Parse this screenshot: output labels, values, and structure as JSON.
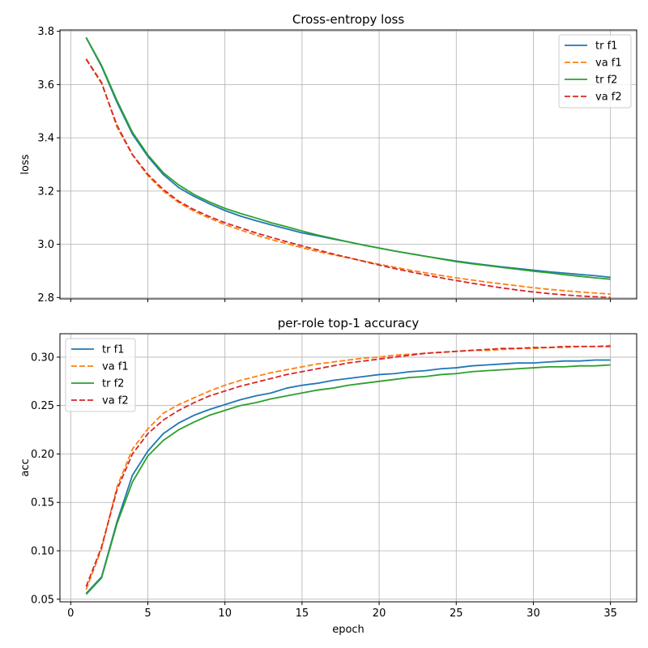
{
  "chart_data": [
    {
      "type": "line",
      "title": "Cross-entropy loss",
      "xlabel": "",
      "ylabel": "loss",
      "xlim": [
        -0.7,
        36.7
      ],
      "ylim": [
        2.795,
        3.805
      ],
      "xticks": [
        0,
        5,
        10,
        15,
        20,
        25,
        30,
        35
      ],
      "xtick_labels_visible": false,
      "yticks": [
        2.8,
        3.0,
        3.2,
        3.4,
        3.6,
        3.8
      ],
      "ytick_labels": [
        "2.8",
        "3.0",
        "3.2",
        "3.4",
        "3.6",
        "3.8"
      ],
      "grid": true,
      "legend_position": "upper right",
      "x": [
        1,
        2,
        3,
        4,
        5,
        6,
        7,
        8,
        9,
        10,
        11,
        12,
        13,
        14,
        15,
        16,
        17,
        18,
        19,
        20,
        21,
        22,
        23,
        24,
        25,
        26,
        27,
        28,
        29,
        30,
        31,
        32,
        33,
        34,
        35
      ],
      "series": [
        {
          "name": "tr f1",
          "color": "#1f77b4",
          "dash": "solid",
          "values": [
            3.776,
            3.668,
            3.533,
            3.414,
            3.33,
            3.262,
            3.213,
            3.18,
            3.152,
            3.127,
            3.106,
            3.089,
            3.073,
            3.058,
            3.043,
            3.032,
            3.02,
            3.009,
            2.997,
            2.986,
            2.975,
            2.965,
            2.955,
            2.946,
            2.937,
            2.929,
            2.922,
            2.915,
            2.909,
            2.903,
            2.897,
            2.892,
            2.887,
            2.882,
            2.876
          ]
        },
        {
          "name": "va f1",
          "color": "#ff7f0e",
          "dash": "dashed",
          "values": [
            3.697,
            3.609,
            3.44,
            3.336,
            3.258,
            3.2,
            3.157,
            3.124,
            3.098,
            3.074,
            3.054,
            3.035,
            3.018,
            3.003,
            2.987,
            2.973,
            2.961,
            2.949,
            2.937,
            2.925,
            2.914,
            2.903,
            2.893,
            2.883,
            2.874,
            2.866,
            2.858,
            2.851,
            2.844,
            2.837,
            2.831,
            2.826,
            2.821,
            2.817,
            2.813
          ]
        },
        {
          "name": "tr f2",
          "color": "#2ca02c",
          "dash": "solid",
          "values": [
            3.777,
            3.672,
            3.54,
            3.421,
            3.336,
            3.269,
            3.223,
            3.187,
            3.159,
            3.135,
            3.116,
            3.099,
            3.081,
            3.066,
            3.05,
            3.035,
            3.022,
            3.009,
            2.997,
            2.986,
            2.975,
            2.965,
            2.955,
            2.945,
            2.935,
            2.927,
            2.92,
            2.913,
            2.906,
            2.899,
            2.893,
            2.886,
            2.88,
            2.874,
            2.869
          ]
        },
        {
          "name": "va f2",
          "color": "#d62728",
          "dash": "dashed",
          "values": [
            3.695,
            3.605,
            3.447,
            3.337,
            3.263,
            3.206,
            3.162,
            3.13,
            3.104,
            3.081,
            3.062,
            3.043,
            3.026,
            3.01,
            2.994,
            2.979,
            2.964,
            2.95,
            2.936,
            2.922,
            2.909,
            2.897,
            2.885,
            2.874,
            2.864,
            2.854,
            2.845,
            2.836,
            2.828,
            2.821,
            2.815,
            2.81,
            2.806,
            2.803,
            2.8
          ]
        }
      ]
    },
    {
      "type": "line",
      "title": "per-role top-1 accuracy",
      "xlabel": "epoch",
      "ylabel": "acc",
      "xlim": [
        -0.7,
        36.7
      ],
      "ylim": [
        0.0473,
        0.3242
      ],
      "xticks": [
        0,
        5,
        10,
        15,
        20,
        25,
        30,
        35
      ],
      "xtick_labels": [
        "0",
        "5",
        "10",
        "15",
        "20",
        "25",
        "30",
        "35"
      ],
      "yticks": [
        0.05,
        0.1,
        0.15,
        0.2,
        0.25,
        0.3
      ],
      "ytick_labels": [
        "0.05",
        "0.10",
        "0.15",
        "0.20",
        "0.25",
        "0.30"
      ],
      "grid": true,
      "legend_position": "upper left",
      "x": [
        1,
        2,
        3,
        4,
        5,
        6,
        7,
        8,
        9,
        10,
        11,
        12,
        13,
        14,
        15,
        16,
        17,
        18,
        19,
        20,
        21,
        22,
        23,
        24,
        25,
        26,
        27,
        28,
        29,
        30,
        31,
        32,
        33,
        34,
        35
      ],
      "series": [
        {
          "name": "tr f1",
          "color": "#1f77b4",
          "dash": "solid",
          "values": [
            0.056,
            0.073,
            0.13,
            0.178,
            0.203,
            0.221,
            0.232,
            0.24,
            0.246,
            0.251,
            0.256,
            0.26,
            0.263,
            0.268,
            0.271,
            0.273,
            0.276,
            0.278,
            0.28,
            0.282,
            0.283,
            0.285,
            0.286,
            0.288,
            0.289,
            0.291,
            0.292,
            0.293,
            0.294,
            0.294,
            0.295,
            0.296,
            0.296,
            0.297,
            0.297
          ]
        },
        {
          "name": "va f1",
          "color": "#ff7f0e",
          "dash": "dashed",
          "values": [
            0.06,
            0.102,
            0.166,
            0.205,
            0.226,
            0.242,
            0.251,
            0.258,
            0.265,
            0.271,
            0.276,
            0.28,
            0.284,
            0.287,
            0.29,
            0.293,
            0.295,
            0.297,
            0.299,
            0.3,
            0.302,
            0.303,
            0.304,
            0.305,
            0.306,
            0.307,
            0.307,
            0.308,
            0.309,
            0.309,
            0.31,
            0.31,
            0.311,
            0.311,
            0.312
          ]
        },
        {
          "name": "tr f2",
          "color": "#2ca02c",
          "dash": "solid",
          "values": [
            0.055,
            0.072,
            0.128,
            0.171,
            0.198,
            0.214,
            0.225,
            0.233,
            0.24,
            0.245,
            0.25,
            0.253,
            0.257,
            0.26,
            0.263,
            0.266,
            0.268,
            0.271,
            0.273,
            0.275,
            0.277,
            0.279,
            0.28,
            0.282,
            0.283,
            0.285,
            0.286,
            0.287,
            0.288,
            0.289,
            0.29,
            0.29,
            0.291,
            0.291,
            0.292
          ]
        },
        {
          "name": "va f2",
          "color": "#d62728",
          "dash": "dashed",
          "values": [
            0.063,
            0.104,
            0.163,
            0.2,
            0.221,
            0.235,
            0.245,
            0.253,
            0.26,
            0.265,
            0.27,
            0.274,
            0.278,
            0.282,
            0.285,
            0.288,
            0.291,
            0.294,
            0.296,
            0.298,
            0.3,
            0.302,
            0.304,
            0.305,
            0.306,
            0.307,
            0.308,
            0.309,
            0.309,
            0.31,
            0.31,
            0.311,
            0.311,
            0.311,
            0.311
          ]
        }
      ]
    }
  ]
}
